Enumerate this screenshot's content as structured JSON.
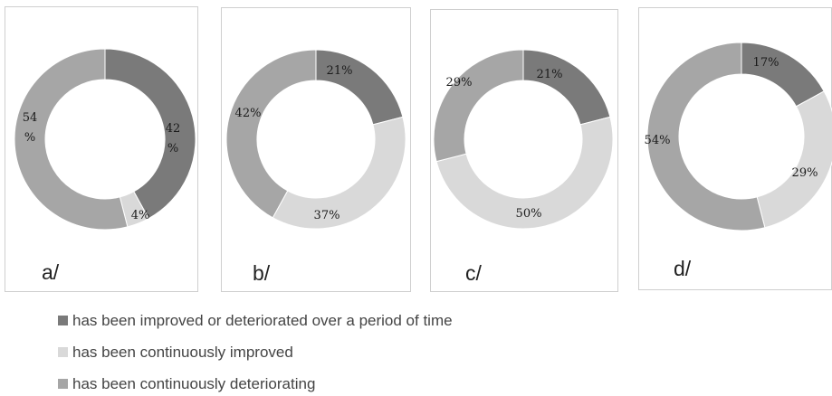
{
  "colors": {
    "varying": "#7a7a7a",
    "improved": "#d9d9d9",
    "deteriorating": "#a6a6a6"
  },
  "legend": [
    {
      "key": "varying",
      "label": "has been improved or deteriorated over a period of time"
    },
    {
      "key": "improved",
      "label": "has been continuously improved"
    },
    {
      "key": "deteriorating",
      "label": "has been continuously deteriorating"
    }
  ],
  "chart_data": [
    {
      "type": "pie",
      "subtype": "donut",
      "panel_label": "a/",
      "slices": [
        {
          "key": "varying",
          "value": 42,
          "label": "42 %"
        },
        {
          "key": "improved",
          "value": 4,
          "label": "4%"
        },
        {
          "key": "deteriorating",
          "value": 54,
          "label": "54 %"
        }
      ]
    },
    {
      "type": "pie",
      "subtype": "donut",
      "panel_label": "b/",
      "slices": [
        {
          "key": "varying",
          "value": 21,
          "label": "21%"
        },
        {
          "key": "improved",
          "value": 37,
          "label": "37%"
        },
        {
          "key": "deteriorating",
          "value": 42,
          "label": "42%"
        }
      ]
    },
    {
      "type": "pie",
      "subtype": "donut",
      "panel_label": "c/",
      "slices": [
        {
          "key": "varying",
          "value": 21,
          "label": "21%"
        },
        {
          "key": "improved",
          "value": 50,
          "label": "50%"
        },
        {
          "key": "deteriorating",
          "value": 29,
          "label": "29%"
        }
      ]
    },
    {
      "type": "pie",
      "subtype": "donut",
      "panel_label": "d/",
      "slices": [
        {
          "key": "varying",
          "value": 17,
          "label": "17%"
        },
        {
          "key": "improved",
          "value": 29,
          "label": "29%"
        },
        {
          "key": "deteriorating",
          "value": 54,
          "label": "54%"
        }
      ]
    }
  ]
}
